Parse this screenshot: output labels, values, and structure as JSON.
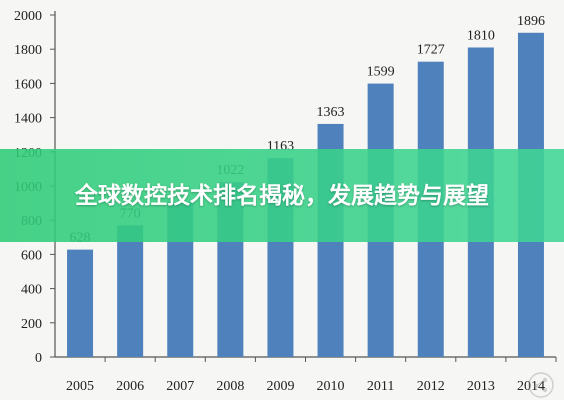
{
  "banner": {
    "title": "全球数控技术排名揭秘，发展趋势与展望"
  },
  "chart_data": {
    "type": "bar",
    "title": "",
    "xlabel": "",
    "ylabel": "",
    "categories": [
      "2005",
      "2006",
      "2007",
      "2008",
      "2009",
      "2010",
      "2011",
      "2012",
      "2013",
      "2014"
    ],
    "values": [
      628,
      770,
      908,
      1022,
      1163,
      1363,
      1599,
      1727,
      1810,
      1896
    ],
    "data_labels": [
      "628",
      "770",
      "",
      "1022",
      "1163",
      "1363",
      "1599",
      "1727",
      "1810",
      "1896"
    ],
    "ylim": [
      0,
      2000
    ],
    "yticks": [
      0,
      200,
      400,
      600,
      800,
      1000,
      1200,
      1400,
      1600,
      1800,
      2000
    ],
    "grid": false,
    "legend": "none",
    "colors": {
      "bar": "#4f81bd",
      "axis": "#555555",
      "text": "#222222"
    }
  },
  "watermark": {
    "icon": "share-watermark-icon"
  }
}
